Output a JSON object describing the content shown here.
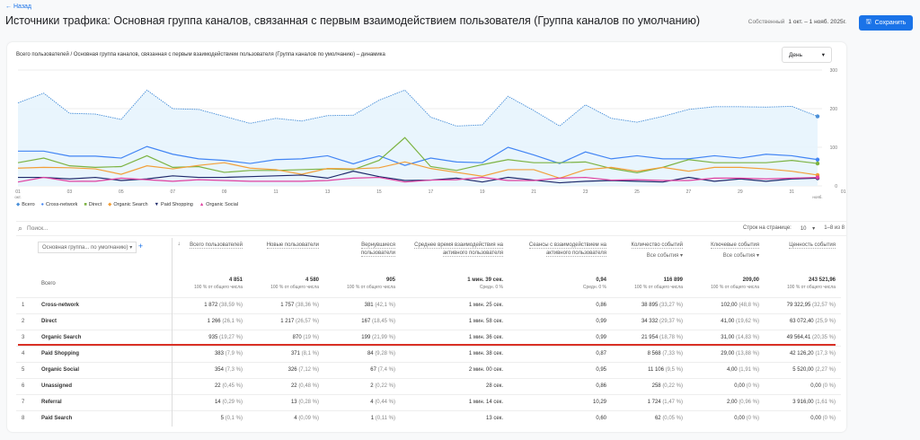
{
  "header": {
    "back_label": "← Назад",
    "title": "Источники трафика: Основная группа каналов, связанная с первым взаимодействием пользователя (Группа каналов по умолчанию)",
    "date_label": "Собственный",
    "date_range": "1 окт. – 1 нояб. 2025г.",
    "save_label": "Сохранить"
  },
  "chart": {
    "title": "Всего пользователей / Основная группа каналов, связанная с первым взаимодействием пользователя (Группа каналов по умолчанию) – динамика",
    "granularity": "День"
  },
  "chart_data": {
    "type": "line",
    "x_ticks": [
      "01",
      "03",
      "05",
      "07",
      "09",
      "11",
      "13",
      "15",
      "17",
      "19",
      "21",
      "23",
      "25",
      "27",
      "29",
      "31",
      "01"
    ],
    "x_tick_sub": {
      "first": "окт.",
      "last": "нояб."
    },
    "y_ticks": [
      0,
      100,
      200,
      300
    ],
    "ylim": [
      0,
      300
    ],
    "x": [
      "01 окт.",
      "02",
      "03",
      "04",
      "05",
      "06",
      "07",
      "08",
      "09",
      "10",
      "11",
      "12",
      "13",
      "14",
      "15",
      "16",
      "17",
      "18",
      "19",
      "20",
      "21",
      "22",
      "23",
      "24",
      "25",
      "26",
      "27",
      "28",
      "29",
      "30",
      "31",
      "01 нояб."
    ],
    "grid": true,
    "legend": "bottom-left",
    "series": [
      {
        "name": "Всего",
        "color": "#4a90d9",
        "values": [
          215,
          240,
          188,
          186,
          172,
          248,
          200,
          198,
          180,
          162,
          175,
          168,
          182,
          183,
          222,
          248,
          178,
          155,
          158,
          232,
          195,
          155,
          210,
          175,
          165,
          180,
          198,
          205,
          205,
          204,
          206,
          180
        ]
      },
      {
        "name": "Cross-network",
        "color": "#4285f4",
        "values": [
          90,
          90,
          77,
          77,
          72,
          102,
          82,
          70,
          66,
          58,
          68,
          70,
          78,
          57,
          78,
          53,
          72,
          62,
          60,
          100,
          80,
          58,
          88,
          70,
          78,
          70,
          70,
          78,
          72,
          82,
          78,
          68
        ]
      },
      {
        "name": "Direct",
        "color": "#7cb342",
        "values": [
          60,
          72,
          52,
          48,
          50,
          78,
          48,
          50,
          35,
          40,
          40,
          42,
          44,
          42,
          66,
          125,
          50,
          40,
          55,
          68,
          60,
          60,
          62,
          45,
          34,
          48,
          68,
          60,
          60,
          60,
          66,
          58
        ]
      },
      {
        "name": "Organic Search",
        "color": "#f29f38",
        "values": [
          46,
          48,
          47,
          44,
          30,
          52,
          44,
          53,
          60,
          46,
          42,
          30,
          45,
          44,
          47,
          62,
          45,
          35,
          25,
          42,
          42,
          20,
          42,
          48,
          38,
          48,
          38,
          48,
          48,
          44,
          38,
          28
        ]
      },
      {
        "name": "Paid Shopping",
        "color": "#1f2a6b",
        "values": [
          22,
          22,
          18,
          22,
          14,
          18,
          26,
          22,
          22,
          24,
          26,
          28,
          20,
          38,
          24,
          14,
          15,
          20,
          10,
          22,
          15,
          8,
          12,
          14,
          12,
          10,
          22,
          12,
          18,
          12,
          18,
          20
        ]
      },
      {
        "name": "Organic Social",
        "color": "#e040a0",
        "values": [
          10,
          22,
          12,
          12,
          20,
          16,
          12,
          16,
          14,
          12,
          12,
          12,
          14,
          20,
          22,
          10,
          15,
          16,
          22,
          14,
          14,
          20,
          22,
          15,
          16,
          14,
          14,
          20,
          20,
          18,
          20,
          22
        ]
      }
    ]
  },
  "legend_markers": [
    "◆",
    "●",
    "■",
    "◆",
    "▼",
    "▲"
  ],
  "table": {
    "search_placeholder": "Поиск...",
    "rows_per_page_label": "Строк на странице:",
    "rows_per_page": "10",
    "range": "1–8 из 8",
    "dimension": "Основная группа... по умолчанию)",
    "columns": [
      {
        "label": "Всего пользователей"
      },
      {
        "label": "Новые пользователи"
      },
      {
        "label": "Вернувшиеся пользователи"
      },
      {
        "label": "Среднее время взаимодействия на активного пользователя"
      },
      {
        "label": "Сеансы с взаимодействием на активного пользователя"
      },
      {
        "label": "Количество событий",
        "selector": "Все события"
      },
      {
        "label": "Ключевые события",
        "selector": "Все события"
      },
      {
        "label": "Ценность события"
      }
    ],
    "totals": {
      "label": "Всего",
      "values": [
        "4 851",
        "4 580",
        "905",
        "1 мин. 39 сек.",
        "0,94",
        "116 899",
        "209,00",
        "243 521,96"
      ],
      "subs": [
        "100 % от общего числа",
        "100 % от общего числа",
        "100 % от общего числа",
        "Средн. 0 %",
        "Средн. 0 %",
        "100 % от общего числа",
        "100 % от общего числа",
        "100 % от общего числа"
      ]
    },
    "rows": [
      {
        "idx": "1",
        "name": "Cross-network",
        "cells": [
          [
            "1 872",
            "(38,59 %)"
          ],
          [
            "1 757",
            "(38,36 %)"
          ],
          [
            "381",
            "(42,1 %)"
          ],
          [
            "1 мин. 25 сек.",
            ""
          ],
          [
            "0,86",
            ""
          ],
          [
            "38 895",
            "(33,27 %)"
          ],
          [
            "102,00",
            "(48,8 %)"
          ],
          [
            "79 322,95",
            "(32,57 %)"
          ]
        ]
      },
      {
        "idx": "2",
        "name": "Direct",
        "cells": [
          [
            "1 266",
            "(26,1 %)"
          ],
          [
            "1 217",
            "(26,57 %)"
          ],
          [
            "167",
            "(18,45 %)"
          ],
          [
            "1 мин. 58 сек.",
            ""
          ],
          [
            "0,99",
            ""
          ],
          [
            "34 332",
            "(29,37 %)"
          ],
          [
            "41,00",
            "(19,62 %)"
          ],
          [
            "63 072,40",
            "(25,9 %)"
          ]
        ]
      },
      {
        "idx": "3",
        "name": "Organic Search",
        "cells": [
          [
            "935",
            "(19,27 %)"
          ],
          [
            "870",
            "(19 %)"
          ],
          [
            "199",
            "(21,99 %)"
          ],
          [
            "1 мин. 36 сек.",
            ""
          ],
          [
            "0,99",
            ""
          ],
          [
            "21 954",
            "(18,78 %)"
          ],
          [
            "31,00",
            "(14,83 %)"
          ],
          [
            "49 564,41",
            "(20,35 %)"
          ]
        ]
      },
      {
        "idx": "4",
        "name": "Paid Shopping",
        "cells": [
          [
            "383",
            "(7,9 %)"
          ],
          [
            "371",
            "(8,1 %)"
          ],
          [
            "84",
            "(9,28 %)"
          ],
          [
            "1 мин. 38 сек.",
            ""
          ],
          [
            "0,87",
            ""
          ],
          [
            "8 568",
            "(7,33 %)"
          ],
          [
            "29,00",
            "(13,88 %)"
          ],
          [
            "42 126,20",
            "(17,3 %)"
          ]
        ]
      },
      {
        "idx": "5",
        "name": "Organic Social",
        "cells": [
          [
            "354",
            "(7,3 %)"
          ],
          [
            "326",
            "(7,12 %)"
          ],
          [
            "67",
            "(7,4 %)"
          ],
          [
            "2 мин. 00 сек.",
            ""
          ],
          [
            "0,95",
            ""
          ],
          [
            "11 106",
            "(9,5 %)"
          ],
          [
            "4,00",
            "(1,91 %)"
          ],
          [
            "5 520,00",
            "(2,27 %)"
          ]
        ]
      },
      {
        "idx": "6",
        "name": "Unassigned",
        "cells": [
          [
            "22",
            "(0,45 %)"
          ],
          [
            "22",
            "(0,48 %)"
          ],
          [
            "2",
            "(0,22 %)"
          ],
          [
            "28 сек.",
            ""
          ],
          [
            "0,86",
            ""
          ],
          [
            "258",
            "(0,22 %)"
          ],
          [
            "0,00",
            "(0 %)"
          ],
          [
            "0,00",
            "(0 %)"
          ]
        ]
      },
      {
        "idx": "7",
        "name": "Referral",
        "cells": [
          [
            "14",
            "(0,29 %)"
          ],
          [
            "13",
            "(0,28 %)"
          ],
          [
            "4",
            "(0,44 %)"
          ],
          [
            "1 мин. 14 сек.",
            ""
          ],
          [
            "10,29",
            ""
          ],
          [
            "1 724",
            "(1,47 %)"
          ],
          [
            "2,00",
            "(0,96 %)"
          ],
          [
            "3 916,00",
            "(1,61 %)"
          ]
        ]
      },
      {
        "idx": "8",
        "name": "Paid Search",
        "cells": [
          [
            "5",
            "(0,1 %)"
          ],
          [
            "4",
            "(0,09 %)"
          ],
          [
            "1",
            "(0,11 %)"
          ],
          [
            "13 сек.",
            ""
          ],
          [
            "0,60",
            ""
          ],
          [
            "62",
            "(0,05 %)"
          ],
          [
            "0,00",
            "(0 %)"
          ],
          [
            "0,00",
            "(0 %)"
          ]
        ]
      }
    ]
  }
}
